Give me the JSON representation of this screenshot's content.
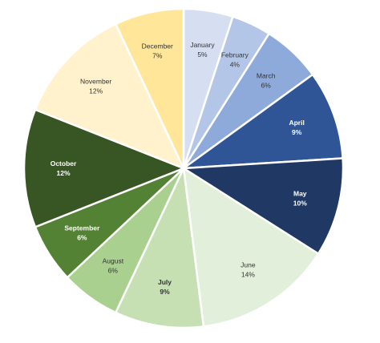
{
  "chart_data": {
    "type": "pie",
    "title": "",
    "categories": [
      "January",
      "February",
      "March",
      "April",
      "May",
      "June",
      "July",
      "August",
      "September",
      "October",
      "November",
      "December"
    ],
    "values": [
      5,
      4,
      6,
      9,
      10,
      14,
      9,
      6,
      6,
      12,
      12,
      7
    ],
    "value_labels": [
      "5%",
      "4%",
      "6%",
      "9%",
      "10%",
      "14%",
      "9%",
      "6%",
      "6%",
      "12%",
      "12%",
      "7%"
    ],
    "unit": "%",
    "colors": [
      "#d6dff2",
      "#b4c6e7",
      "#8eaadb",
      "#2f5597",
      "#203864",
      "#e2efda",
      "#c6e0b4",
      "#a9d08e",
      "#548235",
      "#375623",
      "#fff2cc",
      "#ffe699"
    ],
    "label_colors": [
      "#333333",
      "#333333",
      "#333333",
      "#ffffff",
      "#ffffff",
      "#333333",
      "#333333",
      "#333333",
      "#ffffff",
      "#ffffff",
      "#333333",
      "#333333"
    ],
    "label_bold": [
      false,
      false,
      false,
      true,
      true,
      false,
      true,
      false,
      true,
      true,
      false,
      false
    ],
    "start_angle_deg": 0,
    "direction": "clockwise",
    "legend": "none"
  }
}
